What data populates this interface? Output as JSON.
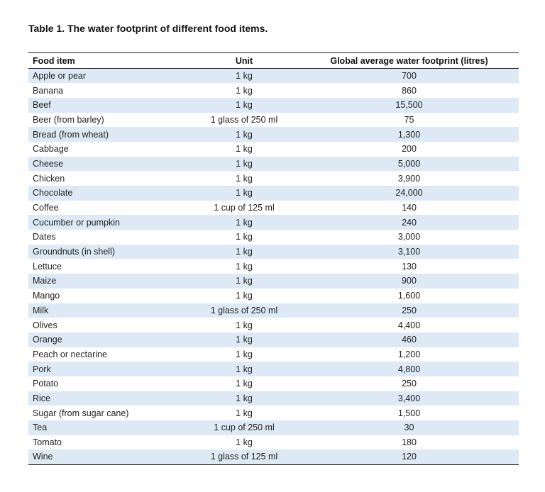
{
  "caption": "Table 1. The water footprint of different food items.",
  "columns": {
    "food": "Food item",
    "unit": "Unit",
    "footprint": "Global average water footprint (litres)"
  },
  "rows": [
    {
      "food": "Apple or pear",
      "unit": "1 kg",
      "footprint": "700"
    },
    {
      "food": "Banana",
      "unit": "1 kg",
      "footprint": "860"
    },
    {
      "food": "Beef",
      "unit": "1 kg",
      "footprint": "15,500"
    },
    {
      "food": "Beer (from barley)",
      "unit": "1 glass of 250 ml",
      "footprint": "75"
    },
    {
      "food": "Bread (from wheat)",
      "unit": "1 kg",
      "footprint": "1,300"
    },
    {
      "food": "Cabbage",
      "unit": "1 kg",
      "footprint": "200"
    },
    {
      "food": "Cheese",
      "unit": "1 kg",
      "footprint": "5,000"
    },
    {
      "food": "Chicken",
      "unit": "1 kg",
      "footprint": "3,900"
    },
    {
      "food": "Chocolate",
      "unit": "1 kg",
      "footprint": "24,000"
    },
    {
      "food": "Coffee",
      "unit": "1 cup of 125 ml",
      "footprint": "140"
    },
    {
      "food": "Cucumber or pumpkin",
      "unit": "1 kg",
      "footprint": "240"
    },
    {
      "food": "Dates",
      "unit": "1 kg",
      "footprint": "3,000"
    },
    {
      "food": "Groundnuts (in shell)",
      "unit": "1 kg",
      "footprint": "3,100"
    },
    {
      "food": "Lettuce",
      "unit": "1 kg",
      "footprint": "130"
    },
    {
      "food": "Maize",
      "unit": "1 kg",
      "footprint": "900"
    },
    {
      "food": "Mango",
      "unit": "1 kg",
      "footprint": "1,600"
    },
    {
      "food": "Milk",
      "unit": "1 glass of 250 ml",
      "footprint": "250"
    },
    {
      "food": "Olives",
      "unit": "1 kg",
      "footprint": "4,400"
    },
    {
      "food": "Orange",
      "unit": "1 kg",
      "footprint": "460"
    },
    {
      "food": "Peach or nectarine",
      "unit": "1 kg",
      "footprint": "1,200"
    },
    {
      "food": "Pork",
      "unit": "1 kg",
      "footprint": "4,800"
    },
    {
      "food": "Potato",
      "unit": "1 kg",
      "footprint": "250"
    },
    {
      "food": "Rice",
      "unit": "1 kg",
      "footprint": "3,400"
    },
    {
      "food": "Sugar (from sugar cane)",
      "unit": "1 kg",
      "footprint": "1,500"
    },
    {
      "food": "Tea",
      "unit": "1 cup of 250 ml",
      "footprint": "30"
    },
    {
      "food": "Tomato",
      "unit": "1 kg",
      "footprint": "180"
    },
    {
      "food": "Wine",
      "unit": "1 glass of 125 ml",
      "footprint": "120"
    }
  ],
  "colors": {
    "stripe": "#dde9f4",
    "rule": "#222222"
  }
}
